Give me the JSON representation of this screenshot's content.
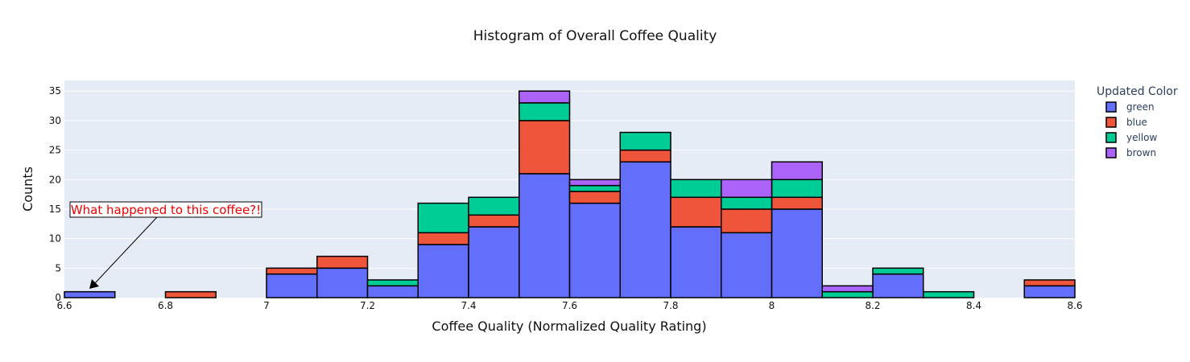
{
  "chart_data": {
    "type": "bar",
    "title": "Histogram of Overall Coffee Quality",
    "xlabel": "Coffee Quality (Normalized Quality Rating)",
    "ylabel": "Counts",
    "xlim": [
      6.6,
      8.6
    ],
    "ylim": [
      0,
      36.8
    ],
    "x_ticks": [
      "6.6",
      "6.8",
      "7",
      "7.2",
      "7.4",
      "7.6",
      "7.8",
      "8",
      "8.2",
      "8.4",
      "8.6"
    ],
    "y_ticks": [
      "0",
      "5",
      "10",
      "15",
      "20",
      "25",
      "30",
      "35"
    ],
    "bin_width": 0.1,
    "bins": [
      6.6,
      6.7,
      6.8,
      6.9,
      7.0,
      7.1,
      7.2,
      7.3,
      7.4,
      7.5,
      7.6,
      7.7,
      7.8,
      7.9,
      8.0,
      8.1,
      8.2,
      8.3,
      8.4,
      8.5
    ],
    "legend_title": "Updated Color",
    "legend_position": "right",
    "grid": true,
    "series": [
      {
        "name": "green",
        "color": "#636efa",
        "values": [
          1,
          0,
          0,
          0,
          4,
          5,
          2,
          9,
          12,
          21,
          16,
          23,
          12,
          11,
          15,
          0,
          4,
          0,
          0,
          2
        ]
      },
      {
        "name": "blue",
        "color": "#ef553b",
        "values": [
          0,
          0,
          1,
          0,
          1,
          2,
          0,
          2,
          2,
          9,
          2,
          2,
          5,
          4,
          2,
          0,
          0,
          0,
          0,
          1
        ]
      },
      {
        "name": "yellow",
        "color": "#00cc96",
        "values": [
          0,
          0,
          0,
          0,
          0,
          0,
          1,
          5,
          3,
          3,
          1,
          3,
          3,
          2,
          3,
          1,
          1,
          1,
          0,
          0
        ]
      },
      {
        "name": "brown",
        "color": "#ab63fa",
        "values": [
          0,
          0,
          0,
          0,
          0,
          0,
          0,
          0,
          0,
          2,
          1,
          0,
          0,
          3,
          3,
          1,
          0,
          0,
          0,
          0
        ]
      }
    ],
    "annotation": {
      "text": "What happened to this coffee?!",
      "color": "#ee0000",
      "target_x": 6.65,
      "target_y": 1.5
    }
  }
}
